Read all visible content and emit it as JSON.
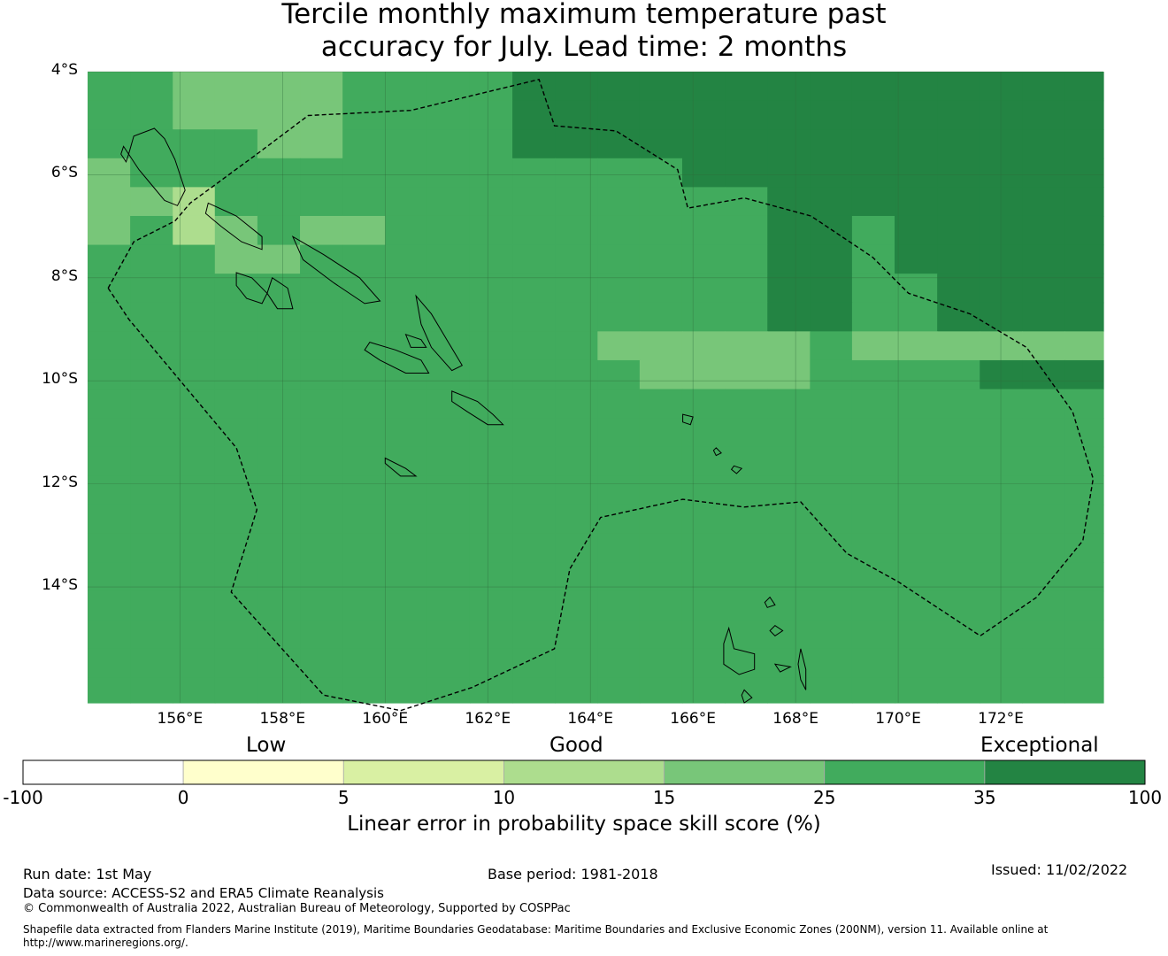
{
  "title_line1": "Tercile monthly maximum temperature past",
  "title_line2": "accuracy for July. Lead time: 2 months",
  "map": {
    "lon_range": [
      154.2,
      174.0
    ],
    "lat_range": [
      -16.25,
      -4.0
    ],
    "lat_ticks": [
      "4°S",
      "6°S",
      "8°S",
      "10°S",
      "12°S",
      "14°S"
    ],
    "lon_ticks": [
      "156°E",
      "158°E",
      "160°E",
      "162°E",
      "164°E",
      "166°E",
      "168°E",
      "170°E",
      "172°E"
    ],
    "grid": true,
    "cell_colors": [
      "#ffffcc",
      "#d9f0a3",
      "#addd8e",
      "#78c679",
      "#41ab5d",
      "#238443"
    ],
    "columns": [
      154.2,
      155.03,
      155.86,
      156.68,
      157.51,
      158.34,
      159.17,
      160.0,
      160.82,
      161.65,
      162.48,
      163.31,
      164.14,
      164.96,
      165.79,
      166.62,
      167.45,
      168.28,
      169.1,
      169.93,
      170.76,
      171.59,
      172.42,
      173.24,
      174.0
    ],
    "rows": [
      -4.0,
      -4.56,
      -5.12,
      -5.68,
      -6.24,
      -6.8,
      -7.36,
      -7.92,
      -8.48,
      -9.04,
      -9.6,
      -10.16,
      -10.72,
      -11.28,
      -11.84,
      -12.4,
      -12.96,
      -13.52,
      -14.08,
      -14.64,
      -15.2,
      -15.76,
      -16.25
    ],
    "skill_grid": [
      "4433334444555555555555555",
      "4433334444555555555555555",
      "4444334444555555555555555",
      "3444444444444455555555555",
      "3324444444444444555555555",
      "3423433444444444554555555",
      "4443344444444444554555555",
      "4444444444444444554455555",
      "4444444444444444554455555",
      "4444444444443333343333333",
      "4444444444444333344445555",
      "4444444444444444444444444",
      "4444444444444444444444444",
      "4444444444444444444444444",
      "4444444444444444444444444",
      "4444444444444444444444444",
      "4444444444444444444444444",
      "4444444444444444444444444",
      "4444444444444444444444444",
      "4444444444444444444444444",
      "4444444444444444444444444",
      "4444444444444444444444444"
    ],
    "eez_boundary": [
      [
        154.6,
        -8.2
      ],
      [
        155.1,
        -7.3
      ],
      [
        155.9,
        -6.9
      ],
      [
        156.2,
        -6.55
      ],
      [
        157.5,
        -5.6
      ],
      [
        158.5,
        -4.85
      ],
      [
        160.5,
        -4.75
      ],
      [
        163.0,
        -4.15
      ],
      [
        163.3,
        -5.05
      ],
      [
        164.5,
        -5.15
      ],
      [
        165.7,
        -5.9
      ],
      [
        165.9,
        -6.65
      ],
      [
        167.0,
        -6.45
      ],
      [
        168.3,
        -6.8
      ],
      [
        169.5,
        -7.6
      ],
      [
        170.2,
        -8.3
      ],
      [
        171.4,
        -8.7
      ],
      [
        172.5,
        -9.35
      ],
      [
        173.4,
        -10.6
      ],
      [
        173.8,
        -11.9
      ],
      [
        173.6,
        -13.1
      ],
      [
        172.7,
        -14.2
      ],
      [
        171.6,
        -14.95
      ],
      [
        170.0,
        -13.9
      ],
      [
        169.0,
        -13.35
      ],
      [
        168.1,
        -12.35
      ],
      [
        167.0,
        -12.45
      ],
      [
        165.8,
        -12.3
      ],
      [
        164.2,
        -12.65
      ],
      [
        163.6,
        -13.65
      ],
      [
        163.3,
        -15.2
      ],
      [
        161.7,
        -15.95
      ],
      [
        160.3,
        -16.4
      ],
      [
        158.8,
        -16.1
      ],
      [
        157.0,
        -14.1
      ],
      [
        157.5,
        -12.5
      ],
      [
        157.1,
        -11.3
      ],
      [
        155.0,
        -8.8
      ],
      [
        154.6,
        -8.2
      ]
    ],
    "islands": [
      [
        [
          155.5,
          -5.1
        ],
        [
          155.7,
          -5.3
        ],
        [
          155.9,
          -5.7
        ],
        [
          156.0,
          -6.0
        ],
        [
          156.1,
          -6.3
        ],
        [
          155.95,
          -6.6
        ],
        [
          155.7,
          -6.5
        ],
        [
          155.45,
          -6.2
        ],
        [
          155.2,
          -5.9
        ],
        [
          155.0,
          -5.6
        ],
        [
          155.1,
          -5.25
        ],
        [
          155.5,
          -5.1
        ]
      ],
      [
        [
          156.55,
          -6.55
        ],
        [
          157.1,
          -6.8
        ],
        [
          157.6,
          -7.2
        ],
        [
          157.6,
          -7.45
        ],
        [
          157.2,
          -7.3
        ],
        [
          156.8,
          -7.0
        ],
        [
          156.5,
          -6.75
        ],
        [
          156.55,
          -6.55
        ]
      ],
      [
        [
          158.2,
          -7.2
        ],
        [
          158.8,
          -7.55
        ],
        [
          159.5,
          -8.0
        ],
        [
          159.9,
          -8.45
        ],
        [
          159.6,
          -8.5
        ],
        [
          159.0,
          -8.1
        ],
        [
          158.4,
          -7.65
        ],
        [
          158.2,
          -7.2
        ]
      ],
      [
        [
          157.1,
          -7.9
        ],
        [
          157.4,
          -8.0
        ],
        [
          157.7,
          -8.3
        ],
        [
          157.6,
          -8.5
        ],
        [
          157.3,
          -8.4
        ],
        [
          157.1,
          -8.15
        ],
        [
          157.1,
          -7.9
        ]
      ],
      [
        [
          157.8,
          -8.0
        ],
        [
          158.1,
          -8.2
        ],
        [
          158.2,
          -8.6
        ],
        [
          157.9,
          -8.6
        ],
        [
          157.7,
          -8.3
        ],
        [
          157.8,
          -8.0
        ]
      ],
      [
        [
          160.6,
          -8.35
        ],
        [
          160.9,
          -8.7
        ],
        [
          161.2,
          -9.2
        ],
        [
          161.5,
          -9.7
        ],
        [
          161.3,
          -9.8
        ],
        [
          160.9,
          -9.35
        ],
        [
          160.7,
          -8.9
        ],
        [
          160.6,
          -8.35
        ]
      ],
      [
        [
          159.7,
          -9.25
        ],
        [
          160.2,
          -9.4
        ],
        [
          160.7,
          -9.6
        ],
        [
          160.85,
          -9.85
        ],
        [
          160.4,
          -9.85
        ],
        [
          159.9,
          -9.6
        ],
        [
          159.6,
          -9.4
        ],
        [
          159.7,
          -9.25
        ]
      ],
      [
        [
          161.3,
          -10.2
        ],
        [
          161.8,
          -10.4
        ],
        [
          162.1,
          -10.65
        ],
        [
          162.3,
          -10.85
        ],
        [
          162.0,
          -10.85
        ],
        [
          161.6,
          -10.6
        ],
        [
          161.3,
          -10.4
        ],
        [
          161.3,
          -10.2
        ]
      ],
      [
        [
          160.4,
          -9.1
        ],
        [
          160.7,
          -9.2
        ],
        [
          160.8,
          -9.35
        ],
        [
          160.5,
          -9.35
        ],
        [
          160.4,
          -9.1
        ]
      ],
      [
        [
          154.9,
          -5.45
        ],
        [
          155.0,
          -5.6
        ],
        [
          154.95,
          -5.75
        ],
        [
          154.85,
          -5.6
        ],
        [
          154.9,
          -5.45
        ]
      ],
      [
        [
          165.8,
          -10.65
        ],
        [
          166.0,
          -10.7
        ],
        [
          165.95,
          -10.85
        ],
        [
          165.8,
          -10.8
        ],
        [
          165.8,
          -10.65
        ]
      ],
      [
        [
          160.0,
          -11.5
        ],
        [
          160.4,
          -11.7
        ],
        [
          160.6,
          -11.85
        ],
        [
          160.3,
          -11.85
        ],
        [
          160.0,
          -11.6
        ],
        [
          160.0,
          -11.5
        ]
      ],
      [
        [
          166.7,
          -14.8
        ],
        [
          166.8,
          -15.2
        ],
        [
          167.2,
          -15.3
        ],
        [
          167.2,
          -15.6
        ],
        [
          166.9,
          -15.7
        ],
        [
          166.6,
          -15.5
        ],
        [
          166.6,
          -15.1
        ],
        [
          166.7,
          -14.8
        ]
      ],
      [
        [
          168.1,
          -15.2
        ],
        [
          168.2,
          -15.6
        ],
        [
          168.2,
          -16.0
        ],
        [
          168.1,
          -15.8
        ],
        [
          168.05,
          -15.5
        ],
        [
          168.1,
          -15.2
        ]
      ],
      [
        [
          167.6,
          -15.5
        ],
        [
          167.9,
          -15.55
        ],
        [
          167.7,
          -15.65
        ],
        [
          167.6,
          -15.5
        ]
      ],
      [
        [
          167.0,
          -16.0
        ],
        [
          167.15,
          -16.15
        ],
        [
          167.0,
          -16.25
        ],
        [
          166.95,
          -16.1
        ],
        [
          167.0,
          -16.0
        ]
      ],
      [
        [
          167.5,
          -14.2
        ],
        [
          167.6,
          -14.35
        ],
        [
          167.45,
          -14.4
        ],
        [
          167.4,
          -14.3
        ],
        [
          167.5,
          -14.2
        ]
      ],
      [
        [
          167.6,
          -14.75
        ],
        [
          167.75,
          -14.85
        ],
        [
          167.6,
          -14.95
        ],
        [
          167.5,
          -14.85
        ],
        [
          167.6,
          -14.75
        ]
      ],
      [
        [
          166.8,
          -11.65
        ],
        [
          166.95,
          -11.7
        ],
        [
          166.85,
          -11.8
        ],
        [
          166.75,
          -11.72
        ],
        [
          166.8,
          -11.65
        ]
      ],
      [
        [
          166.45,
          -11.3
        ],
        [
          166.55,
          -11.4
        ],
        [
          166.45,
          -11.45
        ],
        [
          166.4,
          -11.35
        ],
        [
          166.45,
          -11.3
        ]
      ]
    ]
  },
  "categories": {
    "low": "Low",
    "good": "Good",
    "exceptional": "Exceptional"
  },
  "colorbar": {
    "colors": [
      "#ffffff",
      "#ffffcc",
      "#d9f0a3",
      "#addd8e",
      "#78c679",
      "#41ab5d",
      "#238443"
    ],
    "ticks": [
      "-100",
      "0",
      "5",
      "10",
      "15",
      "25",
      "35",
      "100"
    ],
    "title": "Linear error in probability space skill score (%)"
  },
  "footer": {
    "run_date": "Run date: 1st May",
    "base_period": "Base period: 1981-2018",
    "issued": "Issued: 11/02/2022",
    "data_source": "Data source: ACCESS-S2 and ERA5 Climate Reanalysis",
    "copyright": "© Commonwealth of Australia 2022, Australian Bureau of Meteorology, Supported by COSPPac",
    "shapefile_line1": "Shapefile data extracted from Flanders Marine Institute (2019), Maritime Boundaries Geodatabase: Maritime Boundaries and Exclusive Economic Zones (200NM), version 11. Available online at",
    "shapefile_line2": "http://www.marineregions.org/."
  }
}
